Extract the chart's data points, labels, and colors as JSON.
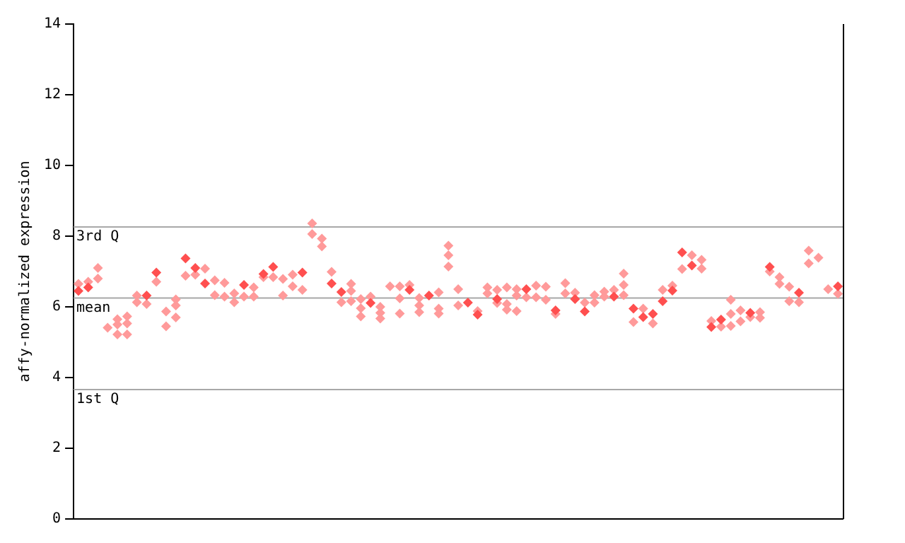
{
  "chart_data": {
    "type": "scatter",
    "ylabel": "affy-normalized expression",
    "categories": [
      null,
      null,
      null,
      null,
      null,
      null,
      null,
      null,
      null,
      null,
      null,
      null,
      null,
      null,
      null,
      null,
      null,
      null,
      null,
      null,
      null,
      null,
      null,
      null,
      null,
      null,
      null,
      null,
      null,
      null,
      null,
      null,
      null,
      null,
      null,
      null,
      null,
      null,
      null,
      null,
      null,
      null,
      null,
      null,
      null,
      null,
      null,
      null,
      null,
      null,
      null,
      null,
      null,
      null,
      null,
      null,
      null,
      null,
      null,
      null,
      null,
      null,
      null,
      null,
      null,
      null,
      null,
      null,
      null,
      null,
      null,
      null,
      null,
      null,
      null,
      null,
      null,
      null,
      null
    ],
    "ylim": [
      0,
      14
    ],
    "yticks": [
      0,
      2,
      4,
      6,
      8,
      10,
      12,
      14
    ],
    "tick_labels": "y",
    "marker": "diamond",
    "ref_lines": [
      {
        "axis": "y",
        "value": 8.26,
        "label": "3rd Q",
        "color": "#a8a8a8"
      },
      {
        "axis": "y",
        "value": 6.25,
        "label": "mean",
        "color": "#a8a8a8"
      },
      {
        "axis": "y",
        "value": 3.66,
        "label": "1st Q",
        "color": "#a8a8a8"
      }
    ],
    "series": [
      {
        "color": "#ff4f4f",
        "values": [
          6.45,
          6.55,
          null,
          null,
          null,
          null,
          null,
          6.32,
          6.97,
          null,
          null,
          7.37,
          7.1,
          6.66,
          null,
          null,
          null,
          6.62,
          null,
          6.93,
          7.13,
          null,
          null,
          6.97,
          null,
          null,
          6.66,
          6.42,
          null,
          null,
          6.11,
          null,
          null,
          null,
          6.48,
          null,
          6.32,
          null,
          null,
          null,
          6.12,
          5.78,
          null,
          6.22,
          null,
          null,
          6.5,
          null,
          null,
          5.9,
          null,
          6.22,
          5.87,
          null,
          null,
          6.29,
          null,
          5.95,
          5.71,
          5.8,
          6.16,
          6.46,
          7.54,
          7.17,
          null,
          5.43,
          5.64,
          null,
          null,
          5.83,
          null,
          7.13,
          null,
          null,
          6.4,
          null,
          null,
          null,
          6.58
        ]
      },
      {
        "color": "#ff9a9a",
        "values": [
          6.65,
          6.71,
          7.1,
          5.41,
          5.65,
          5.73,
          6.32,
          6.08,
          6.71,
          5.87,
          6.21,
          6.88,
          6.91,
          7.08,
          6.75,
          6.68,
          6.38,
          6.29,
          6.55,
          6.84,
          6.84,
          6.79,
          6.91,
          6.48,
          8.36,
          7.93,
          6.99,
          6.13,
          6.65,
          6.22,
          6.29,
          6.0,
          6.58,
          6.58,
          6.62,
          6.25,
          null,
          6.41,
          7.73,
          6.5,
          null,
          5.88,
          6.55,
          6.48,
          6.55,
          6.5,
          6.27,
          6.6,
          6.57,
          5.8,
          6.67,
          6.4,
          6.12,
          6.33,
          6.43,
          6.48,
          6.94,
          5.57,
          5.95,
          5.53,
          6.48,
          6.6,
          7.07,
          7.46,
          7.33,
          5.6,
          5.44,
          6.2,
          5.9,
          5.71,
          5.85,
          7.0,
          6.84,
          6.57,
          6.13,
          7.59,
          7.39,
          6.5,
          6.37
        ]
      },
      {
        "color": "#ff9a9a",
        "values": [
          null,
          null,
          6.8,
          null,
          5.5,
          5.53,
          6.13,
          null,
          null,
          5.45,
          6.04,
          null,
          null,
          null,
          6.33,
          6.29,
          6.13,
          null,
          6.29,
          null,
          null,
          6.32,
          6.58,
          null,
          8.06,
          7.71,
          null,
          null,
          6.45,
          5.96,
          null,
          5.83,
          null,
          6.24,
          null,
          6.04,
          null,
          5.95,
          7.46,
          6.04,
          null,
          null,
          6.38,
          6.11,
          6.08,
          6.32,
          null,
          6.27,
          6.2,
          null,
          6.38,
          null,
          null,
          6.12,
          6.29,
          null,
          6.62,
          null,
          null,
          null,
          null,
          null,
          null,
          null,
          7.08,
          null,
          null,
          5.8,
          5.59,
          null,
          5.69,
          null,
          6.65,
          6.16,
          null,
          7.23,
          null,
          null,
          null
        ]
      },
      {
        "color": "#ff9a9a",
        "values": [
          null,
          null,
          null,
          null,
          5.22,
          5.22,
          null,
          null,
          null,
          null,
          5.7,
          null,
          null,
          null,
          null,
          null,
          null,
          null,
          null,
          null,
          null,
          null,
          null,
          null,
          null,
          null,
          null,
          null,
          6.16,
          5.73,
          null,
          5.67,
          null,
          5.81,
          null,
          5.85,
          null,
          5.81,
          7.14,
          null,
          null,
          null,
          null,
          null,
          5.92,
          5.88,
          null,
          null,
          null,
          null,
          null,
          null,
          null,
          null,
          null,
          null,
          6.33,
          null,
          null,
          null,
          null,
          null,
          null,
          null,
          null,
          null,
          null,
          5.46,
          null,
          null,
          null,
          null,
          null,
          null,
          null,
          null,
          null,
          null,
          null
        ]
      }
    ]
  }
}
